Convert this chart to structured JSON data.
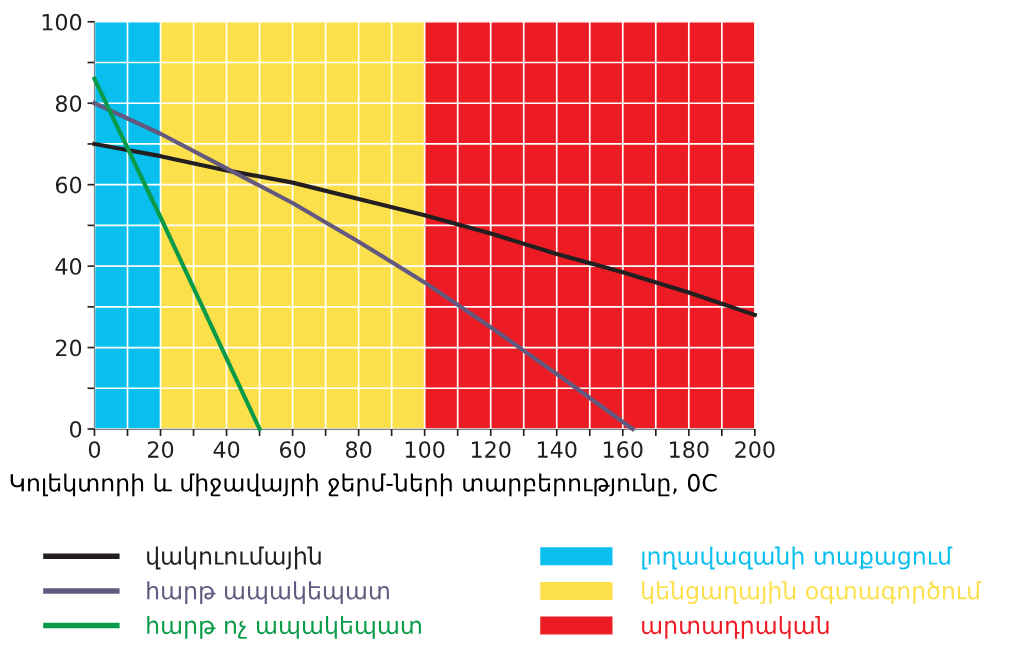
{
  "chart_data": {
    "type": "line",
    "xlabel": "Կոլեկտորի և միջավայրի ջերմ-ների տարբերությունը, 0C",
    "series": [
      {
        "name": "վակուումային",
        "color": "#231f20",
        "x": [
          0,
          20,
          40,
          60,
          80,
          100,
          120,
          140,
          160,
          180,
          200
        ],
        "values": [
          70,
          67,
          63.5,
          60.5,
          56.5,
          52.5,
          48,
          43,
          38.5,
          33.5,
          28
        ]
      },
      {
        "name": "հարթ ապակեպատ",
        "color": "#63597f",
        "x": [
          0,
          20,
          40,
          60,
          80,
          100,
          120,
          140,
          163
        ],
        "values": [
          80,
          72.5,
          64,
          55.5,
          46,
          36,
          25,
          13.5,
          0
        ]
      },
      {
        "name": "հարթ ոչ ապակեպատ",
        "color": "#0a9a48",
        "x": [
          0,
          20,
          50
        ],
        "values": [
          86,
          52,
          0
        ]
      }
    ],
    "bands": [
      {
        "axis": "x",
        "from": 0,
        "to": 20,
        "label": "լողավազանի տաքացում",
        "color": "#08bfee"
      },
      {
        "axis": "x",
        "from": 20,
        "to": 100,
        "label": "կենցաղային օգտագործում",
        "color": "#fce04b"
      },
      {
        "axis": "x",
        "from": 100,
        "to": 200,
        "label": "արտադրական",
        "color": "#ed1c24"
      }
    ],
    "xlim": [
      0,
      200
    ],
    "ylim": [
      0,
      100
    ],
    "xticks": [
      0,
      {
        "value": 10,
        "label": null
      },
      20,
      {
        "value": 30,
        "label": null
      },
      40,
      {
        "value": 50,
        "label": null
      },
      60,
      {
        "value": 70,
        "label": null
      },
      80,
      {
        "value": 90,
        "label": null
      },
      100,
      {
        "value": 110,
        "label": null
      },
      120,
      {
        "value": 130,
        "label": null
      },
      140,
      {
        "value": 150,
        "label": null
      },
      160,
      {
        "value": 170,
        "label": null
      },
      180,
      {
        "value": 190,
        "label": null
      },
      200
    ],
    "yticks": [
      0,
      {
        "value": 10,
        "label": null
      },
      20,
      {
        "value": 30,
        "label": null
      },
      40,
      {
        "value": 50,
        "label": null
      },
      60,
      {
        "value": 70,
        "label": null
      },
      80,
      {
        "value": 90,
        "label": null
      },
      100
    ],
    "grid": true,
    "legend": "bottom",
    "marker": "none",
    "line_style": "solid"
  }
}
